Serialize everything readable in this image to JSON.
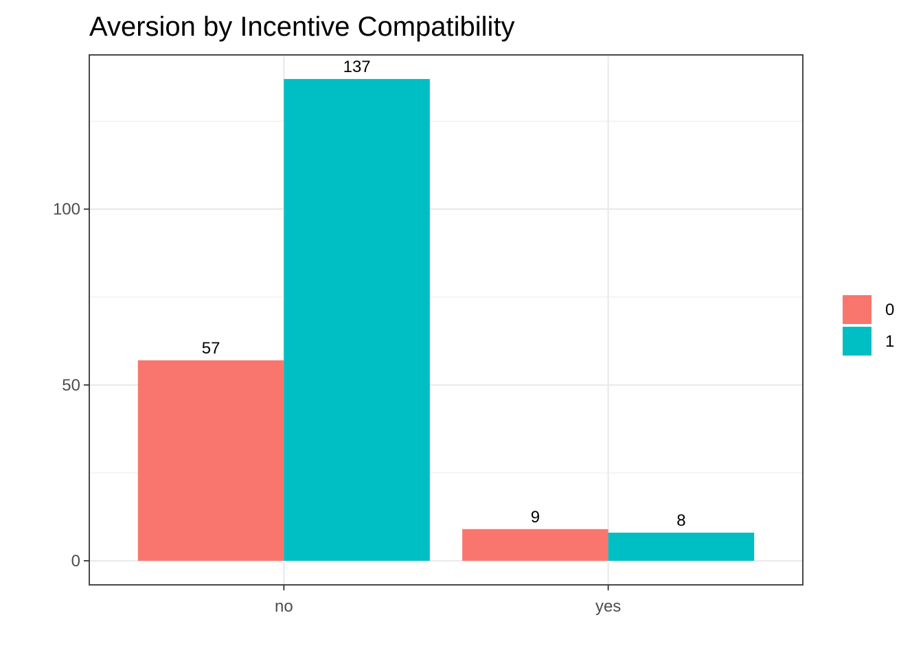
{
  "chart_data": {
    "type": "bar",
    "title": "Aversion by Incentive Compatibility",
    "xlabel": "",
    "ylabel": "",
    "categories": [
      "no",
      "yes"
    ],
    "series": [
      {
        "name": "0",
        "values": [
          57,
          9
        ],
        "color": "#F8766D"
      },
      {
        "name": "1",
        "values": [
          137,
          8
        ],
        "color": "#00BFC4"
      }
    ],
    "ylim": [
      -6.85,
      143.85
    ],
    "yticks": [
      0,
      50,
      100
    ],
    "y_minor_ticks": [
      25,
      75,
      125
    ],
    "value_labels": true,
    "grid": true,
    "legend_position": "right"
  }
}
